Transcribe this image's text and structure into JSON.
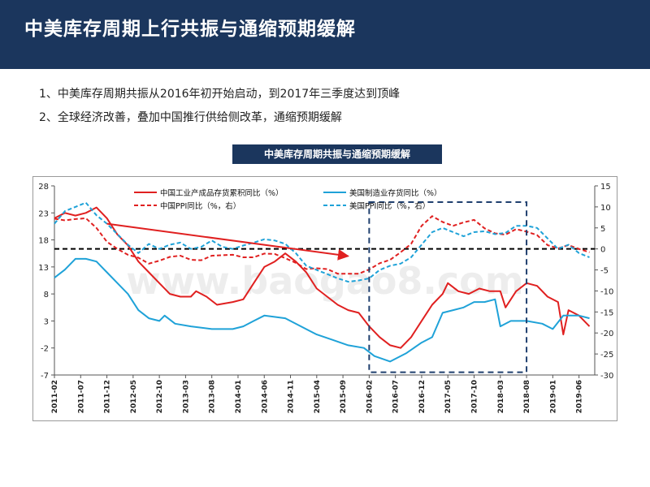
{
  "slide": {
    "title": "中美库存周期上行共振与通缩预期缓解",
    "bullets": [
      "1、中美库存周期共振从2016年初开始启动，到2017年三季度达到顶峰",
      "2、全球经济改善，叠加中国推行供给侧改革，通缩预期缓解"
    ],
    "chart_heading": "中美库存周期共振与通缩预期缓解"
  },
  "colors": {
    "header_bg": "#1b365d",
    "china": "#e02020",
    "us": "#1fa2d8",
    "annotation": "#1f3f6e"
  },
  "chart_data": {
    "type": "line",
    "x_ticks": [
      "2011-02",
      "2011-07",
      "2011-12",
      "2012-05",
      "2012-10",
      "2013-03",
      "2013-08",
      "2014-01",
      "2014-06",
      "2014-11",
      "2015-04",
      "2015-09",
      "2016-02",
      "2016-07",
      "2016-12",
      "2017-05",
      "2017-10",
      "2018-03",
      "2018-08",
      "2019-01",
      "2019-06"
    ],
    "x_range": [
      "2011-02",
      "2019-09"
    ],
    "y_left": {
      "ticks": [
        "28",
        "23",
        "18",
        "13",
        "8",
        "3",
        "-2",
        "-7"
      ],
      "lim": [
        -7,
        28
      ]
    },
    "y_right": {
      "ticks": [
        "15",
        "10",
        "5",
        "0",
        "-5",
        "-10",
        "-15",
        "-20",
        "-25",
        "-30"
      ],
      "lim": [
        -30,
        15
      ]
    },
    "reference_line": {
      "axis": "right",
      "value": 0,
      "style": "dashed-black"
    },
    "legend_position": "top",
    "series": [
      {
        "name": "中国工业产成品存货累积同比（%）",
        "axis": "left",
        "style": "solid",
        "color": "#e02020",
        "points": [
          [
            "2011-02",
            22
          ],
          [
            "2011-04",
            23
          ],
          [
            "2011-06",
            22.5
          ],
          [
            "2011-08",
            23
          ],
          [
            "2011-10",
            24
          ],
          [
            "2011-12",
            22
          ],
          [
            "2012-02",
            19
          ],
          [
            "2012-04",
            17
          ],
          [
            "2012-06",
            14
          ],
          [
            "2012-08",
            12
          ],
          [
            "2012-10",
            10
          ],
          [
            "2012-12",
            8
          ],
          [
            "2013-02",
            7.5
          ],
          [
            "2013-04",
            7.5
          ],
          [
            "2013-05",
            8.5
          ],
          [
            "2013-07",
            7.5
          ],
          [
            "2013-09",
            6
          ],
          [
            "2013-12",
            6.5
          ],
          [
            "2014-02",
            7
          ],
          [
            "2014-04",
            10
          ],
          [
            "2014-06",
            13
          ],
          [
            "2014-08",
            14
          ],
          [
            "2014-10",
            15.5
          ],
          [
            "2014-12",
            14
          ],
          [
            "2015-02",
            12
          ],
          [
            "2015-04",
            9
          ],
          [
            "2015-06",
            7.5
          ],
          [
            "2015-08",
            6
          ],
          [
            "2015-10",
            5
          ],
          [
            "2015-12",
            4.5
          ],
          [
            "2016-02",
            2
          ],
          [
            "2016-04",
            0
          ],
          [
            "2016-06",
            -1.5
          ],
          [
            "2016-08",
            -2
          ],
          [
            "2016-10",
            0
          ],
          [
            "2016-12",
            3
          ],
          [
            "2017-02",
            6
          ],
          [
            "2017-04",
            8
          ],
          [
            "2017-05",
            10
          ],
          [
            "2017-07",
            8.5
          ],
          [
            "2017-09",
            8
          ],
          [
            "2017-11",
            9
          ],
          [
            "2018-01",
            8.5
          ],
          [
            "2018-03",
            8.5
          ],
          [
            "2018-04",
            5.5
          ],
          [
            "2018-06",
            8.5
          ],
          [
            "2018-08",
            10
          ],
          [
            "2018-10",
            9.5
          ],
          [
            "2018-12",
            7.5
          ],
          [
            "2019-02",
            6.5
          ],
          [
            "2019-03",
            0.5
          ],
          [
            "2019-04",
            5
          ],
          [
            "2019-06",
            4
          ],
          [
            "2019-08",
            2
          ]
        ]
      },
      {
        "name": "美国制造业存货同比（%）",
        "axis": "left",
        "style": "solid",
        "color": "#1fa2d8",
        "points": [
          [
            "2011-02",
            11
          ],
          [
            "2011-04",
            12.5
          ],
          [
            "2011-06",
            14.5
          ],
          [
            "2011-08",
            14.5
          ],
          [
            "2011-10",
            14
          ],
          [
            "2011-12",
            12
          ],
          [
            "2012-02",
            10
          ],
          [
            "2012-04",
            8
          ],
          [
            "2012-06",
            5
          ],
          [
            "2012-08",
            3.5
          ],
          [
            "2012-10",
            3
          ],
          [
            "2012-11",
            4
          ],
          [
            "2013-01",
            2.5
          ],
          [
            "2013-04",
            2
          ],
          [
            "2013-08",
            1.5
          ],
          [
            "2013-12",
            1.5
          ],
          [
            "2014-02",
            2
          ],
          [
            "2014-04",
            3
          ],
          [
            "2014-06",
            4
          ],
          [
            "2014-10",
            3.5
          ],
          [
            "2015-01",
            2
          ],
          [
            "2015-04",
            0.5
          ],
          [
            "2015-07",
            -0.5
          ],
          [
            "2015-10",
            -1.5
          ],
          [
            "2016-01",
            -2
          ],
          [
            "2016-03",
            -3.5
          ],
          [
            "2016-06",
            -4.5
          ],
          [
            "2016-09",
            -3
          ],
          [
            "2016-12",
            -1
          ],
          [
            "2017-02",
            0
          ],
          [
            "2017-04",
            4.5
          ],
          [
            "2017-06",
            5
          ],
          [
            "2017-08",
            5.5
          ],
          [
            "2017-10",
            6.5
          ],
          [
            "2017-12",
            6.5
          ],
          [
            "2018-02",
            7
          ],
          [
            "2018-03",
            2
          ],
          [
            "2018-05",
            3
          ],
          [
            "2018-08",
            3
          ],
          [
            "2018-11",
            2.5
          ],
          [
            "2019-01",
            1.5
          ],
          [
            "2019-03",
            4
          ],
          [
            "2019-06",
            4
          ],
          [
            "2019-08",
            3.5
          ]
        ]
      },
      {
        "name": "中国PPI同比（%，右）",
        "axis": "right",
        "style": "dashed",
        "color": "#e02020",
        "points": [
          [
            "2011-02",
            7.2
          ],
          [
            "2011-04",
            6.8
          ],
          [
            "2011-06",
            7.1
          ],
          [
            "2011-08",
            7.3
          ],
          [
            "2011-10",
            5
          ],
          [
            "2011-12",
            1.7
          ],
          [
            "2012-02",
            0
          ],
          [
            "2012-04",
            -1.4
          ],
          [
            "2012-06",
            -2.1
          ],
          [
            "2012-08",
            -3.5
          ],
          [
            "2012-10",
            -2.8
          ],
          [
            "2012-12",
            -1.9
          ],
          [
            "2013-02",
            -1.6
          ],
          [
            "2013-04",
            -2.6
          ],
          [
            "2013-06",
            -2.7
          ],
          [
            "2013-08",
            -1.6
          ],
          [
            "2013-10",
            -1.5
          ],
          [
            "2013-12",
            -1.4
          ],
          [
            "2014-02",
            -2
          ],
          [
            "2014-04",
            -2
          ],
          [
            "2014-06",
            -1.1
          ],
          [
            "2014-08",
            -1.2
          ],
          [
            "2014-10",
            -2.2
          ],
          [
            "2014-12",
            -3.3
          ],
          [
            "2015-02",
            -4.8
          ],
          [
            "2015-04",
            -4.6
          ],
          [
            "2015-06",
            -4.8
          ],
          [
            "2015-08",
            -5.9
          ],
          [
            "2015-10",
            -5.9
          ],
          [
            "2015-12",
            -5.9
          ],
          [
            "2016-02",
            -4.9
          ],
          [
            "2016-04",
            -3.4
          ],
          [
            "2016-06",
            -2.6
          ],
          [
            "2016-08",
            -0.8
          ],
          [
            "2016-10",
            1.2
          ],
          [
            "2016-12",
            5.5
          ],
          [
            "2017-02",
            7.8
          ],
          [
            "2017-04",
            6.4
          ],
          [
            "2017-06",
            5.5
          ],
          [
            "2017-08",
            6.3
          ],
          [
            "2017-10",
            6.9
          ],
          [
            "2017-12",
            4.9
          ],
          [
            "2018-02",
            3.7
          ],
          [
            "2018-04",
            3.4
          ],
          [
            "2018-06",
            4.7
          ],
          [
            "2018-08",
            4.1
          ],
          [
            "2018-10",
            3.3
          ],
          [
            "2018-12",
            0.9
          ],
          [
            "2019-02",
            0.1
          ],
          [
            "2019-04",
            0.9
          ],
          [
            "2019-06",
            0
          ],
          [
            "2019-08",
            -0.8
          ]
        ]
      },
      {
        "name": "美国PPI同比（%，右）",
        "axis": "right",
        "style": "dashed",
        "color": "#1fa2d8",
        "points": [
          [
            "2011-02",
            6
          ],
          [
            "2011-04",
            9
          ],
          [
            "2011-06",
            10
          ],
          [
            "2011-08",
            11
          ],
          [
            "2011-10",
            8
          ],
          [
            "2011-12",
            6
          ],
          [
            "2012-02",
            3.5
          ],
          [
            "2012-04",
            1
          ],
          [
            "2012-06",
            -1
          ],
          [
            "2012-08",
            1.2
          ],
          [
            "2012-10",
            0
          ],
          [
            "2012-12",
            1
          ],
          [
            "2013-02",
            1.5
          ],
          [
            "2013-04",
            0
          ],
          [
            "2013-06",
            0.5
          ],
          [
            "2013-08",
            2
          ],
          [
            "2013-10",
            0.5
          ],
          [
            "2013-12",
            0
          ],
          [
            "2014-02",
            0.8
          ],
          [
            "2014-04",
            1.5
          ],
          [
            "2014-06",
            2.3
          ],
          [
            "2014-08",
            2
          ],
          [
            "2014-10",
            1.2
          ],
          [
            "2014-12",
            -1
          ],
          [
            "2015-02",
            -4
          ],
          [
            "2015-04",
            -5
          ],
          [
            "2015-06",
            -6
          ],
          [
            "2015-08",
            -7
          ],
          [
            "2015-10",
            -7.8
          ],
          [
            "2015-12",
            -7.5
          ],
          [
            "2016-02",
            -7
          ],
          [
            "2016-04",
            -5
          ],
          [
            "2016-06",
            -4
          ],
          [
            "2016-08",
            -3.5
          ],
          [
            "2016-10",
            -2
          ],
          [
            "2016-12",
            1
          ],
          [
            "2017-02",
            4
          ],
          [
            "2017-04",
            5
          ],
          [
            "2017-06",
            4
          ],
          [
            "2017-08",
            3
          ],
          [
            "2017-10",
            4
          ],
          [
            "2017-12",
            4.2
          ],
          [
            "2018-02",
            3.5
          ],
          [
            "2018-04",
            3.8
          ],
          [
            "2018-06",
            5.5
          ],
          [
            "2018-08",
            5.5
          ],
          [
            "2018-10",
            5
          ],
          [
            "2018-12",
            2.5
          ],
          [
            "2019-02",
            0
          ],
          [
            "2019-04",
            1
          ],
          [
            "2019-06",
            -1
          ],
          [
            "2019-08",
            -2
          ]
        ]
      }
    ],
    "annotation": {
      "type": "arrow",
      "style": "solid-red",
      "from": [
        "2011-12",
        21
      ],
      "to": [
        "2015-10",
        15
      ]
    },
    "highlight_box": {
      "style": "dashed",
      "color": "#1f3f6e",
      "x": [
        "2016-02",
        "2018-08"
      ],
      "y_left": [
        -6.5,
        25
      ]
    },
    "watermark": "www.baogao8.com"
  }
}
